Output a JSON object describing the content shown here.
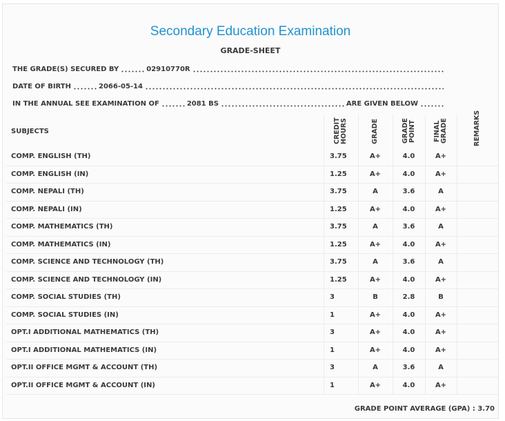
{
  "header": {
    "title": "Secondary Education Examination",
    "subtitle": "GRADE-SHEET"
  },
  "info": [
    {
      "label": "THE GRADE(S) SECURED BY",
      "value": "02910770R"
    },
    {
      "label": "DATE OF BIRTH",
      "value": "2066-05-14"
    },
    {
      "label": "IN THE ANNUAL SEE EXAMINATION OF",
      "value": "2081 BS",
      "suffix": "ARE GIVEN BELOW"
    }
  ],
  "table": {
    "columns": [
      "SUBJECTS",
      "CREDIT HOURS",
      "GRADE",
      "GRADE POINT",
      "FINAL GRADE",
      "REMARKS"
    ],
    "rows": [
      [
        "COMP. ENGLISH (TH)",
        "3.75",
        "A+",
        "4.0",
        "A+"
      ],
      [
        "COMP. ENGLISH (IN)",
        "1.25",
        "A+",
        "4.0",
        "A+"
      ],
      [
        "COMP. NEPALI (TH)",
        "3.75",
        "A",
        "3.6",
        "A"
      ],
      [
        "COMP. NEPALI (IN)",
        "1.25",
        "A+",
        "4.0",
        "A+"
      ],
      [
        "COMP. MATHEMATICS (TH)",
        "3.75",
        "A",
        "3.6",
        "A"
      ],
      [
        "COMP. MATHEMATICS (IN)",
        "1.25",
        "A+",
        "4.0",
        "A+"
      ],
      [
        "COMP. SCIENCE AND TECHNOLOGY (TH)",
        "3.75",
        "A",
        "3.6",
        "A"
      ],
      [
        "COMP. SCIENCE AND TECHNOLOGY (IN)",
        "1.25",
        "A+",
        "4.0",
        "A+"
      ],
      [
        "COMP. SOCIAL STUDIES (TH)",
        "3",
        "B",
        "2.8",
        "B"
      ],
      [
        "COMP. SOCIAL STUDIES (IN)",
        "1",
        "A+",
        "4.0",
        "A+"
      ],
      [
        "OPT.I ADDITIONAL MATHEMATICS (TH)",
        "3",
        "A+",
        "4.0",
        "A+"
      ],
      [
        "OPT.I ADDITIONAL MATHEMATICS (IN)",
        "1",
        "A+",
        "4.0",
        "A+"
      ],
      [
        "OPT.II OFFICE MGMT & ACCOUNT (TH)",
        "3",
        "A",
        "3.6",
        "A"
      ],
      [
        "OPT.II OFFICE MGMT & ACCOUNT (IN)",
        "1",
        "A+",
        "4.0",
        "A+"
      ]
    ]
  },
  "footer": {
    "label": "GRADE POINT AVERAGE (GPA) :",
    "value": "3.70"
  }
}
